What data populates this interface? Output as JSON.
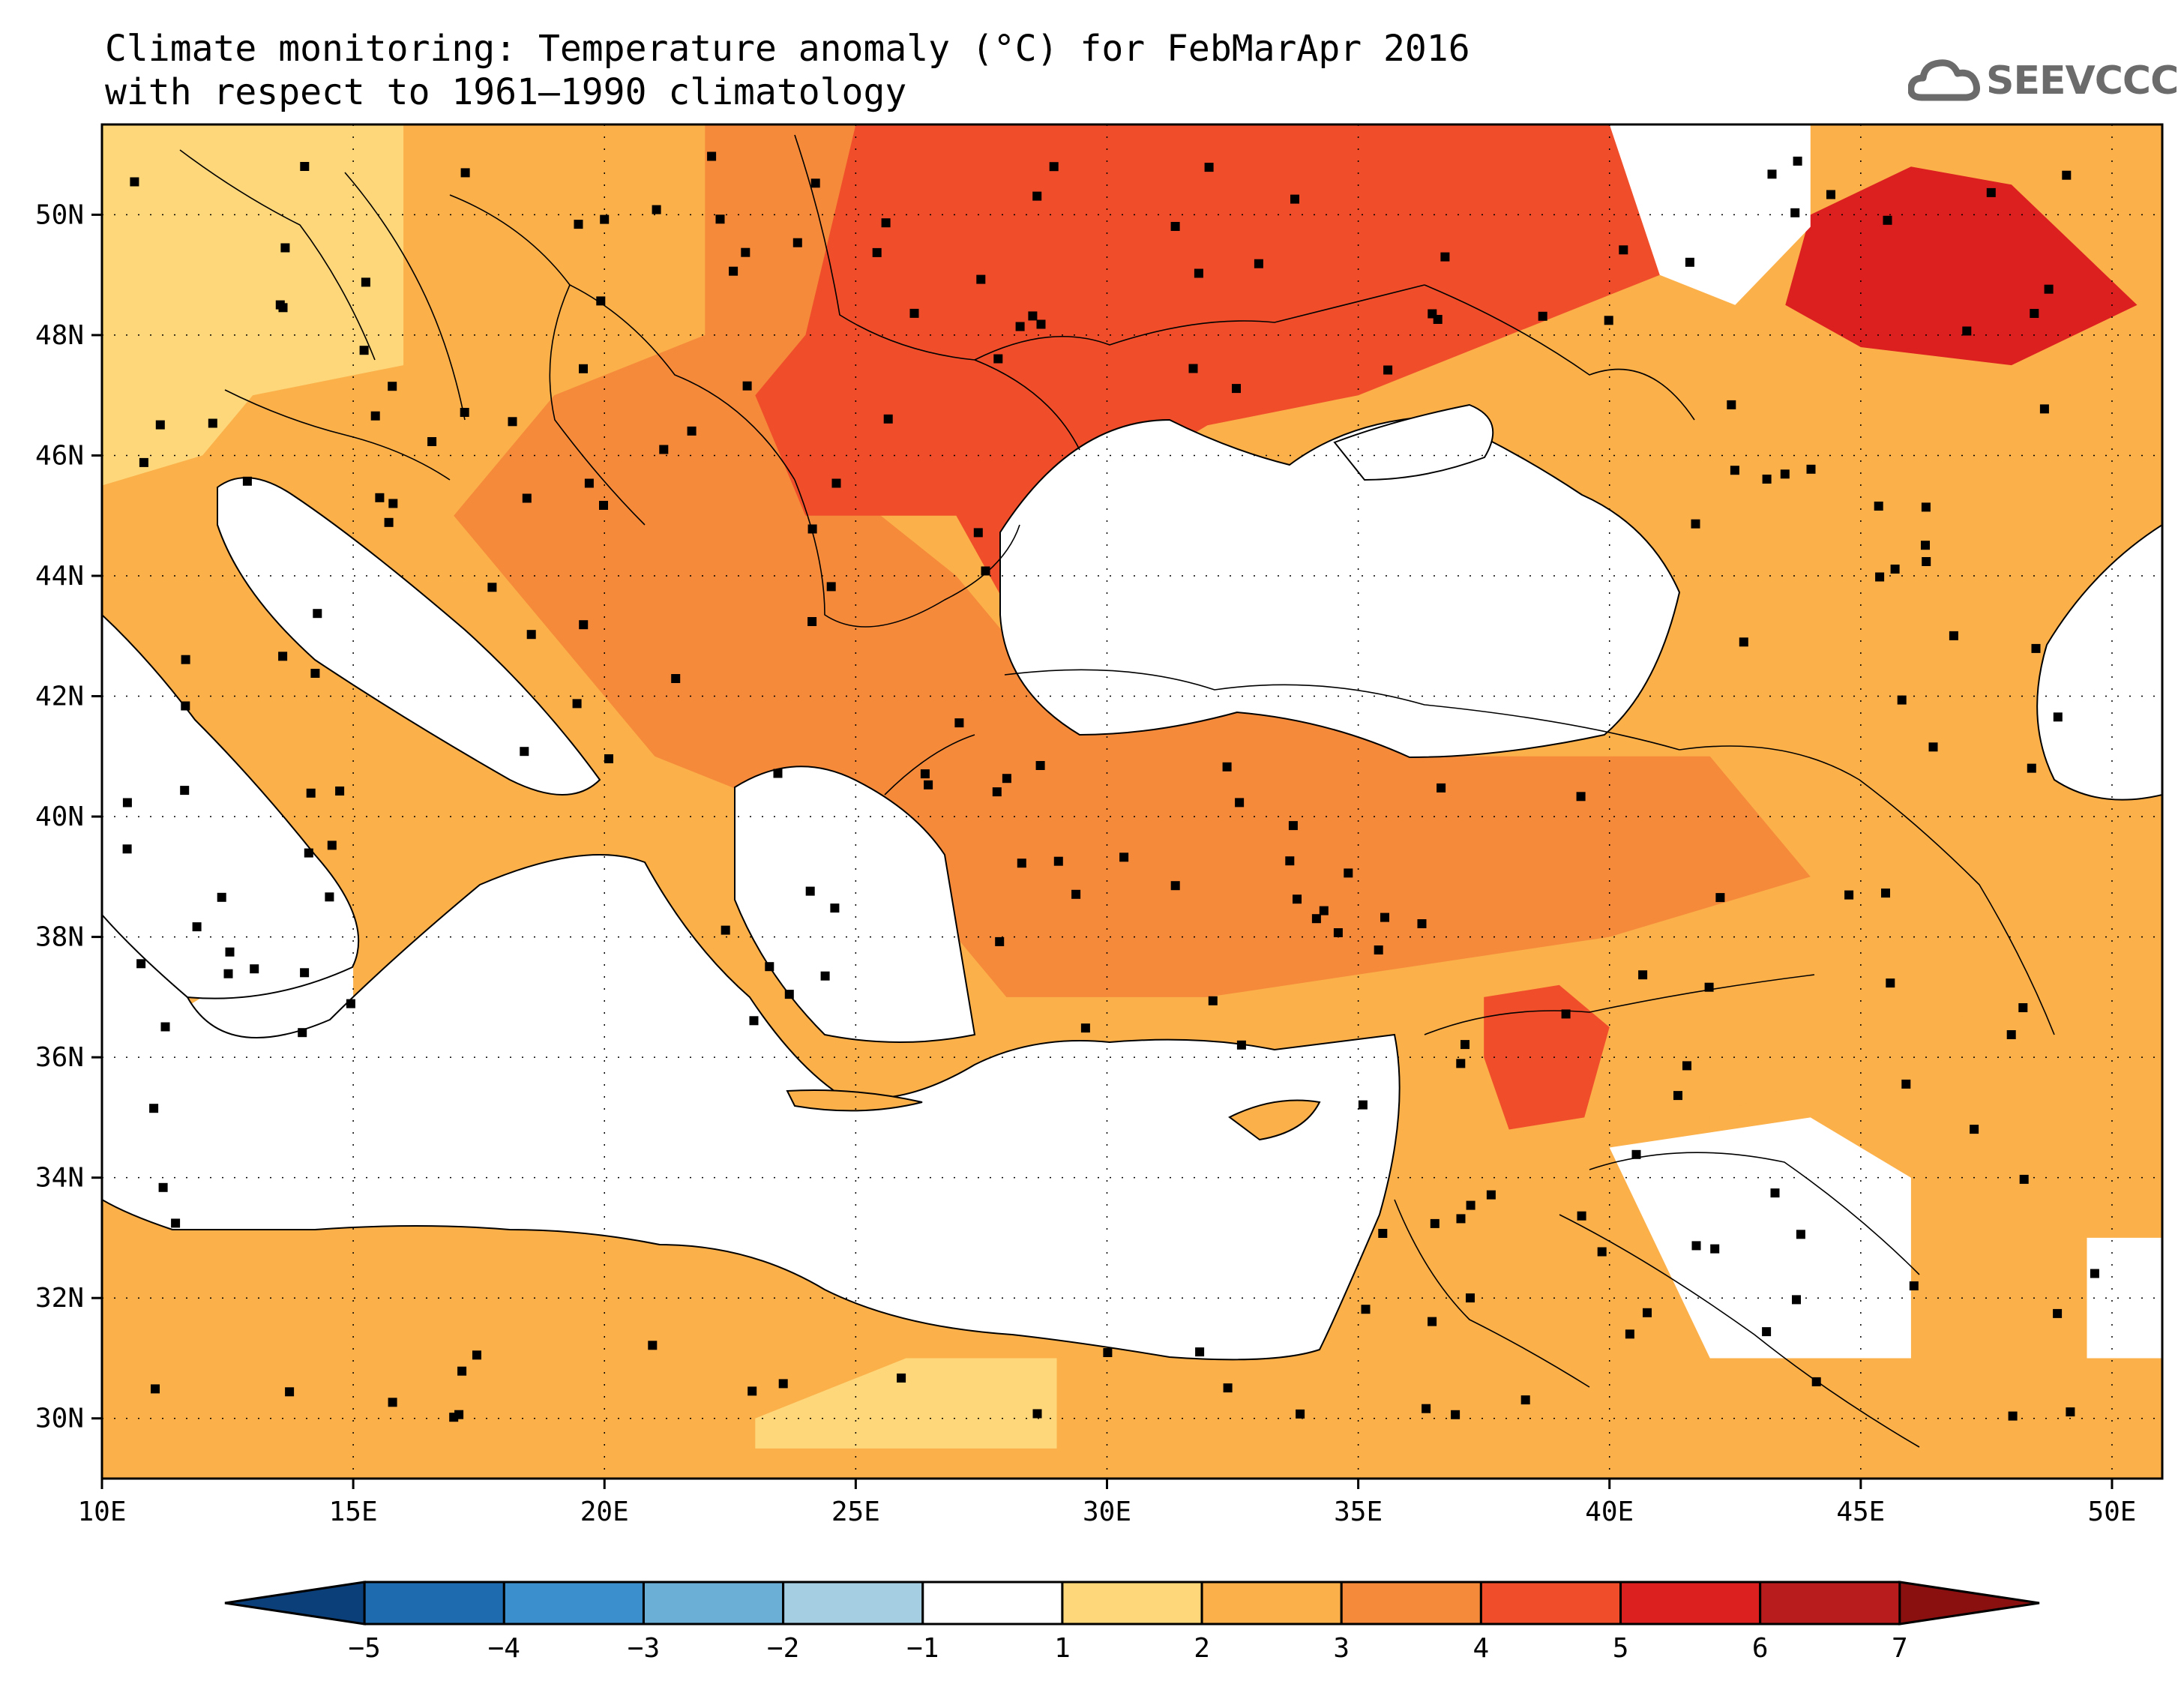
{
  "title": {
    "line1": "Climate monitoring: Temperature anomaly (°C) for FebMarApr 2016",
    "line2": "with respect to 1961–1990 climatology"
  },
  "logo": {
    "text": "SEEVCCC",
    "icon": "cloud-icon",
    "color": "#6b6b6b"
  },
  "map": {
    "lon_range": [
      10,
      51
    ],
    "lat_range": [
      29,
      51.5
    ],
    "x_ticks": [
      {
        "lon": 10,
        "label": "10E"
      },
      {
        "lon": 15,
        "label": "15E"
      },
      {
        "lon": 20,
        "label": "20E"
      },
      {
        "lon": 25,
        "label": "25E"
      },
      {
        "lon": 30,
        "label": "30E"
      },
      {
        "lon": 35,
        "label": "35E"
      },
      {
        "lon": 40,
        "label": "40E"
      },
      {
        "lon": 45,
        "label": "45E"
      },
      {
        "lon": 50,
        "label": "50E"
      }
    ],
    "y_ticks": [
      {
        "lat": 30,
        "label": "30N"
      },
      {
        "lat": 32,
        "label": "32N"
      },
      {
        "lat": 34,
        "label": "34N"
      },
      {
        "lat": 36,
        "label": "36N"
      },
      {
        "lat": 38,
        "label": "38N"
      },
      {
        "lat": 40,
        "label": "40N"
      },
      {
        "lat": 42,
        "label": "42N"
      },
      {
        "lat": 44,
        "label": "44N"
      },
      {
        "lat": 46,
        "label": "46N"
      },
      {
        "lat": 48,
        "label": "48N"
      },
      {
        "lat": 50,
        "label": "50N"
      }
    ],
    "grid": "dotted"
  },
  "colorbar": {
    "ticks": [
      "-5",
      "-4",
      "-3",
      "-2",
      "-1",
      "1",
      "2",
      "3",
      "4",
      "5",
      "6",
      "7"
    ],
    "bins": [
      {
        "from": null,
        "to": -5,
        "color": "#0b3f7a"
      },
      {
        "from": -5,
        "to": -4,
        "color": "#1f6bb0"
      },
      {
        "from": -4,
        "to": -3,
        "color": "#3b8fcc"
      },
      {
        "from": -3,
        "to": -2,
        "color": "#6baed6"
      },
      {
        "from": -2,
        "to": -1,
        "color": "#a6cee3"
      },
      {
        "from": -1,
        "to": 1,
        "color": "#ffffff"
      },
      {
        "from": 1,
        "to": 2,
        "color": "#fdd77a"
      },
      {
        "from": 2,
        "to": 3,
        "color": "#fbb04a"
      },
      {
        "from": 3,
        "to": 4,
        "color": "#f58a3a"
      },
      {
        "from": 4,
        "to": 5,
        "color": "#f04e2a"
      },
      {
        "from": 5,
        "to": 6,
        "color": "#dc1f1f"
      },
      {
        "from": 6,
        "to": 7,
        "color": "#b81c1c"
      },
      {
        "from": 7,
        "to": null,
        "color": "#8a0f0f"
      }
    ]
  },
  "chart_data": {
    "type": "heatmap",
    "title": "Climate monitoring: Temperature anomaly (°C) for FebMarApr 2016",
    "subtitle": "with respect to 1961–1990 climatology",
    "xlim": [
      10,
      51
    ],
    "ylim": [
      29,
      51.5
    ],
    "anomaly_regions": [
      {
        "name_hint": "north-italy-alps",
        "anomaly_bin": [
          1,
          2
        ],
        "polygon": [
          [
            10,
            51.5
          ],
          [
            17,
            51.5
          ],
          [
            17.5,
            49
          ],
          [
            16,
            47.5
          ],
          [
            13,
            47
          ],
          [
            12,
            46
          ],
          [
            10,
            45.5
          ]
        ]
      },
      {
        "name_hint": "central-europe-balkans",
        "anomaly_bin": [
          2,
          3
        ],
        "polygon": [
          [
            16,
            51.5
          ],
          [
            22,
            51.5
          ],
          [
            22.5,
            48
          ],
          [
            20,
            46.5
          ],
          [
            18,
            45
          ],
          [
            14,
            43
          ],
          [
            11,
            44
          ],
          [
            10,
            45.5
          ],
          [
            12,
            46
          ],
          [
            14,
            46
          ],
          [
            16,
            47.5
          ]
        ]
      },
      {
        "name_hint": "balkans-turkey",
        "anomaly_bin": [
          3,
          4
        ],
        "polygon": [
          [
            22,
            51.5
          ],
          [
            25,
            51.5
          ],
          [
            24,
            48
          ],
          [
            24,
            46
          ],
          [
            27,
            44
          ],
          [
            29,
            42
          ],
          [
            32,
            42
          ],
          [
            37,
            41
          ],
          [
            42,
            41
          ],
          [
            44,
            39
          ],
          [
            40,
            38
          ],
          [
            36,
            37.5
          ],
          [
            32,
            37
          ],
          [
            28,
            37
          ],
          [
            26,
            39
          ],
          [
            24,
            40
          ],
          [
            21,
            41
          ],
          [
            19,
            43
          ],
          [
            17,
            45
          ],
          [
            19,
            47
          ],
          [
            22,
            48
          ]
        ]
      },
      {
        "name_hint": "ukraine-romania",
        "anomaly_bin": [
          4,
          5
        ],
        "polygon": [
          [
            25,
            51.5
          ],
          [
            41,
            51.5
          ],
          [
            41,
            49
          ],
          [
            38,
            48
          ],
          [
            35,
            47
          ],
          [
            32,
            46.5
          ],
          [
            30,
            45.5
          ],
          [
            28,
            43.5
          ],
          [
            27,
            45
          ],
          [
            24,
            45
          ],
          [
            23,
            47
          ],
          [
            24,
            48
          ]
        ]
      },
      {
        "name_hint": "south-russia",
        "anomaly_bin": [
          5,
          6
        ],
        "polygon": [
          [
            44,
            50
          ],
          [
            46,
            50.8
          ],
          [
            48,
            50.5
          ],
          [
            50.5,
            48.5
          ],
          [
            48,
            47.5
          ],
          [
            45,
            47.8
          ],
          [
            43.5,
            48.5
          ]
        ]
      },
      {
        "name_hint": "syria",
        "anomaly_bin": [
          4,
          5
        ],
        "polygon": [
          [
            37.5,
            37
          ],
          [
            39,
            37.2
          ],
          [
            40,
            36.5
          ],
          [
            39.5,
            35
          ],
          [
            38,
            34.8
          ],
          [
            37.5,
            36
          ]
        ]
      },
      {
        "name_hint": "egypt-coast",
        "anomaly_bin": [
          1,
          2
        ],
        "polygon": [
          [
            23,
            30
          ],
          [
            26,
            31
          ],
          [
            29,
            31
          ],
          [
            29,
            29.5
          ],
          [
            23,
            29.5
          ]
        ]
      },
      {
        "name_hint": "sinai-levant",
        "anomaly_bin": [
          2,
          3
        ],
        "polygon": [
          [
            29,
            31
          ],
          [
            33,
            31.5
          ],
          [
            36,
            34
          ],
          [
            42,
            35
          ],
          [
            42,
            31
          ],
          [
            37,
            29
          ],
          [
            29,
            29
          ]
        ]
      },
      {
        "name_hint": "iran-iraq",
        "anomaly_bin": [
          2,
          3
        ],
        "polygon": [
          [
            42,
            35
          ],
          [
            51,
            38
          ],
          [
            51,
            30
          ],
          [
            46,
            29
          ],
          [
            42,
            31
          ]
        ]
      }
    ],
    "stations_note": "station markers shown as black squares"
  }
}
